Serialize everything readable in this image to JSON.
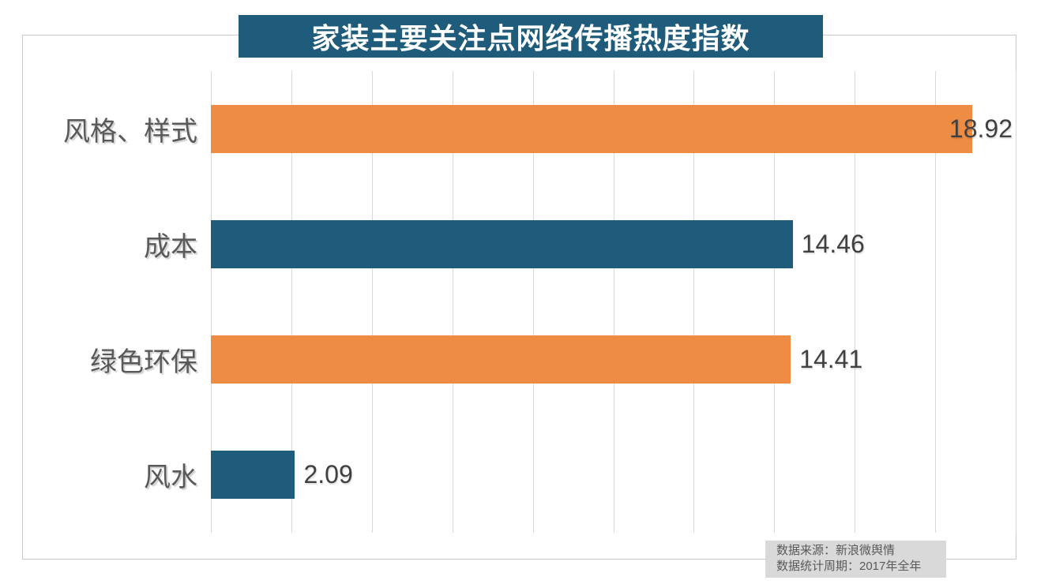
{
  "title": "家装主要关注点网络传播热度指数",
  "source_note": {
    "line1": "数据来源：新浪微舆情",
    "line2": "数据统计周期：2017年全年"
  },
  "colors": {
    "teal": "#1F5C7B",
    "orange": "#EE8C43",
    "grid_line": "#D9D9D9",
    "frame_border": "#C9C9C9",
    "category_label": "#595959",
    "value_label": "#404040",
    "title_text": "#FFFFFF",
    "note_bg": "#D9D9D9",
    "note_text": "#595959"
  },
  "chart_data": {
    "type": "bar",
    "orientation": "horizontal",
    "title": "家装主要关注点网络传播热度指数",
    "categories": [
      "风格、样式",
      "成本",
      "绿色环保",
      "风水"
    ],
    "values": [
      18.92,
      14.46,
      14.41,
      2.09
    ],
    "value_labels": [
      "18.92",
      "14.46",
      "14.41",
      "2.09"
    ],
    "bar_colors": [
      "orange",
      "teal",
      "orange",
      "teal"
    ],
    "xlim": [
      0,
      20
    ],
    "grid_interval": 2,
    "grid": true,
    "legend": false,
    "value_label_position": "outside-end",
    "annotations": [
      "数据来源：新浪微舆情",
      "数据统计周期：2017年全年"
    ]
  }
}
